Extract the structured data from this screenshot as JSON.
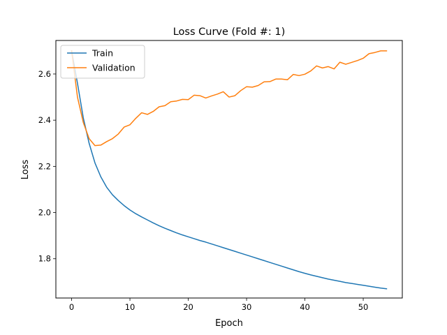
{
  "chart_data": {
    "type": "line",
    "title": "Loss Curve (Fold #: 1)",
    "xlabel": "Epoch",
    "ylabel": "Loss",
    "xlim": [
      -2.7,
      56.7
    ],
    "ylim": [
      1.63,
      2.745
    ],
    "xticks": [
      0,
      10,
      20,
      30,
      40,
      50
    ],
    "yticks": [
      1.8,
      2.0,
      2.2,
      2.4,
      2.6
    ],
    "ytick_labels": [
      "1.8",
      "2.0",
      "2.2",
      "2.4",
      "2.6"
    ],
    "grid": false,
    "legend_position": "top-left",
    "x": [
      0,
      1,
      2,
      3,
      4,
      5,
      6,
      7,
      8,
      9,
      10,
      11,
      12,
      13,
      14,
      15,
      16,
      17,
      18,
      19,
      20,
      21,
      22,
      23,
      24,
      25,
      26,
      27,
      28,
      29,
      30,
      31,
      32,
      33,
      34,
      35,
      36,
      37,
      38,
      39,
      40,
      41,
      42,
      43,
      44,
      45,
      46,
      47,
      48,
      49,
      50,
      51,
      52,
      53,
      54
    ],
    "series": [
      {
        "name": "Train",
        "color": "#1f77b4",
        "values": [
          2.7,
          2.56,
          2.41,
          2.3,
          2.215,
          2.155,
          2.11,
          2.077,
          2.052,
          2.03,
          2.011,
          1.995,
          1.981,
          1.968,
          1.955,
          1.943,
          1.932,
          1.922,
          1.912,
          1.903,
          1.895,
          1.887,
          1.879,
          1.872,
          1.864,
          1.856,
          1.848,
          1.84,
          1.832,
          1.824,
          1.816,
          1.808,
          1.8,
          1.792,
          1.784,
          1.776,
          1.768,
          1.76,
          1.752,
          1.744,
          1.737,
          1.73,
          1.724,
          1.718,
          1.712,
          1.707,
          1.702,
          1.697,
          1.693,
          1.689,
          1.685,
          1.681,
          1.677,
          1.673,
          1.67
        ]
      },
      {
        "name": "Validation",
        "color": "#ff7f0e",
        "values": [
          2.7,
          2.5,
          2.39,
          2.32,
          2.29,
          2.292,
          2.307,
          2.32,
          2.34,
          2.37,
          2.38,
          2.408,
          2.432,
          2.425,
          2.438,
          2.458,
          2.463,
          2.48,
          2.483,
          2.49,
          2.489,
          2.508,
          2.506,
          2.496,
          2.505,
          2.513,
          2.523,
          2.5,
          2.506,
          2.528,
          2.545,
          2.543,
          2.55,
          2.566,
          2.567,
          2.578,
          2.578,
          2.575,
          2.598,
          2.593,
          2.599,
          2.613,
          2.635,
          2.626,
          2.632,
          2.622,
          2.651,
          2.642,
          2.65,
          2.658,
          2.668,
          2.688,
          2.693,
          2.7,
          2.7
        ]
      }
    ]
  }
}
